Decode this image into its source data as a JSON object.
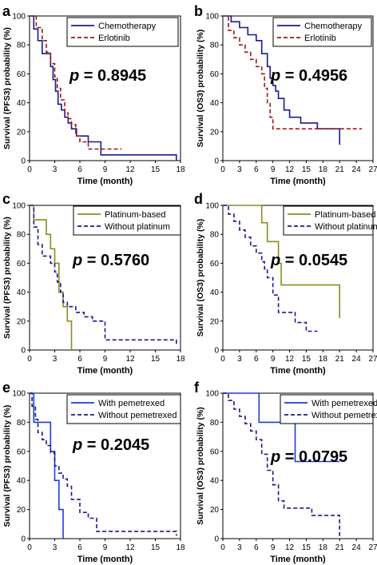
{
  "chart_data": [
    {
      "panel": "a",
      "type": "line",
      "step": true,
      "xlabel": "Time (month)",
      "ylabel": "Survival (PFS3) probability (%)",
      "xlim": [
        0,
        18
      ],
      "xticks": [
        0,
        3,
        6,
        9,
        12,
        15,
        18
      ],
      "ylim": [
        0,
        100
      ],
      "yticks": [
        0,
        20,
        40,
        60,
        80,
        100
      ],
      "annotation": "p = 0.8945",
      "legend_position": "top-right",
      "series": [
        {
          "name": "Chemotherapy",
          "color": "#1a1a8c",
          "dash": "solid",
          "x": [
            0,
            0.5,
            1,
            1.5,
            2,
            2.5,
            2.8,
            3.1,
            3.4,
            3.8,
            4.2,
            4.6,
            5,
            5.6,
            7,
            8.5,
            17.5,
            17.5
          ],
          "y": [
            100,
            91,
            83,
            74,
            74,
            65,
            56,
            48,
            39,
            35,
            30,
            26,
            22,
            17,
            13,
            4,
            4,
            0
          ]
        },
        {
          "name": "Erlotinib",
          "color": "#a01818",
          "dash": "dash",
          "x": [
            0,
            0.8,
            1.5,
            2,
            2.5,
            3,
            3.3,
            3.7,
            4.2,
            4.6,
            5,
            5.5,
            6,
            7,
            8.5,
            11
          ],
          "y": [
            100,
            92,
            83,
            75,
            67,
            58,
            50,
            42,
            33,
            29,
            25,
            17,
            13,
            8,
            8,
            8
          ]
        }
      ]
    },
    {
      "panel": "b",
      "type": "line",
      "step": true,
      "xlabel": "Time (month)",
      "ylabel": "Survival (OS3) probability (%)",
      "xlim": [
        0,
        27
      ],
      "xticks": [
        0,
        3,
        6,
        9,
        12,
        15,
        18,
        21,
        24,
        27
      ],
      "ylim": [
        0,
        100
      ],
      "yticks": [
        0,
        20,
        40,
        60,
        80,
        100
      ],
      "annotation": "p = 0.4956",
      "legend_position": "top-right",
      "series": [
        {
          "name": "Chemotherapy",
          "color": "#1a1a8c",
          "dash": "solid",
          "x": [
            0,
            1.5,
            3,
            4.5,
            6,
            7,
            8,
            8.5,
            9,
            9.5,
            10,
            11,
            12,
            14,
            17,
            21,
            21
          ],
          "y": [
            100,
            96,
            92,
            87,
            83,
            74,
            65,
            57,
            52,
            48,
            43,
            35,
            30,
            26,
            22,
            22,
            11
          ]
        },
        {
          "name": "Erlotinib",
          "color": "#a01818",
          "dash": "dash",
          "x": [
            0,
            1,
            2,
            3,
            4,
            5,
            6,
            7,
            7.5,
            8,
            8.5,
            9,
            25
          ],
          "y": [
            100,
            90,
            85,
            80,
            75,
            70,
            65,
            60,
            50,
            40,
            30,
            22,
            22
          ]
        }
      ]
    },
    {
      "panel": "c",
      "type": "line",
      "step": true,
      "xlabel": "Time (month)",
      "ylabel": "Survival (PFS3) probability (%)",
      "xlim": [
        0,
        18
      ],
      "xticks": [
        0,
        3,
        6,
        9,
        12,
        15,
        18
      ],
      "ylim": [
        0,
        100
      ],
      "yticks": [
        0,
        20,
        40,
        60,
        80,
        100
      ],
      "annotation": "p = 0.5760",
      "legend_position": "top-right",
      "series": [
        {
          "name": "Platinum-based",
          "color": "#8c8c1e",
          "dash": "solid",
          "x": [
            0,
            0.5,
            2,
            2.5,
            3,
            3.5,
            4,
            4.5,
            5,
            5
          ],
          "y": [
            100,
            90,
            80,
            70,
            60,
            40,
            30,
            20,
            10,
            0
          ]
        },
        {
          "name": "Without platinum",
          "color": "#1a1a8c",
          "dash": "dash",
          "x": [
            0,
            0.5,
            1,
            1.5,
            2.5,
            3,
            3.3,
            3.7,
            4,
            4.5,
            5.5,
            6.5,
            7.5,
            9,
            17.5,
            17.5
          ],
          "y": [
            100,
            85,
            73,
            65,
            60,
            54,
            47,
            40,
            33,
            30,
            26,
            23,
            20,
            7,
            7,
            3
          ]
        }
      ]
    },
    {
      "panel": "d",
      "type": "line",
      "step": true,
      "xlabel": "Time (month)",
      "ylabel": "Survival (OS3) probability (%)",
      "xlim": [
        0,
        27
      ],
      "xticks": [
        0,
        3,
        6,
        9,
        12,
        15,
        18,
        21,
        24,
        27
      ],
      "ylim": [
        0,
        100
      ],
      "yticks": [
        0,
        20,
        40,
        60,
        80,
        100
      ],
      "annotation": "p = 0.0545",
      "legend_position": "top-right",
      "series": [
        {
          "name": "Platinum-based",
          "color": "#8c8c1e",
          "dash": "solid",
          "x": [
            0,
            7,
            8,
            10,
            10.5,
            21,
            21
          ],
          "y": [
            100,
            88,
            75,
            60,
            45,
            45,
            22
          ]
        },
        {
          "name": "Without platinum",
          "color": "#1a1a8c",
          "dash": "dash",
          "x": [
            0,
            1,
            2,
            3,
            4,
            5,
            6,
            7,
            7.5,
            8,
            9,
            10,
            12,
            13,
            15,
            17
          ],
          "y": [
            100,
            94,
            89,
            83,
            78,
            72,
            67,
            61,
            56,
            50,
            38,
            26,
            26,
            19,
            13,
            13
          ]
        }
      ]
    },
    {
      "panel": "e",
      "type": "line",
      "step": true,
      "xlabel": "Time (month)",
      "ylabel": "Survival (PFS3) probability (%)",
      "xlim": [
        0,
        18
      ],
      "xticks": [
        0,
        3,
        6,
        9,
        12,
        15,
        18
      ],
      "ylim": [
        0,
        100
      ],
      "yticks": [
        0,
        20,
        40,
        60,
        80,
        100
      ],
      "annotation": "p = 0.2045",
      "legend_position": "top-right",
      "series": [
        {
          "name": "With pemetrexed",
          "color": "#1e3cd2",
          "dash": "solid",
          "x": [
            0,
            0.5,
            2.5,
            3,
            3.5,
            4,
            4
          ],
          "y": [
            100,
            80,
            60,
            40,
            20,
            20,
            0
          ]
        },
        {
          "name": "Without pemetrexed",
          "color": "#1a1a8c",
          "dash": "dash",
          "x": [
            0,
            0.3,
            0.7,
            1,
            1.5,
            2,
            2.5,
            3,
            3.5,
            4,
            4.5,
            5,
            6,
            7,
            8,
            17.5,
            17.5
          ],
          "y": [
            100,
            91,
            82,
            73,
            68,
            64,
            59,
            50,
            45,
            41,
            36,
            27,
            18,
            14,
            5,
            5,
            2
          ]
        }
      ]
    },
    {
      "panel": "f",
      "type": "line",
      "step": true,
      "xlabel": "Time (month)",
      "ylabel": "Survival (OS3) probability (%)",
      "xlim": [
        0,
        27
      ],
      "xticks": [
        0,
        3,
        6,
        9,
        12,
        15,
        18,
        21,
        24,
        27
      ],
      "ylim": [
        0,
        100
      ],
      "yticks": [
        0,
        20,
        40,
        60,
        80,
        100
      ],
      "annotation": "p = 0.0795",
      "legend_position": "top-right",
      "series": [
        {
          "name": "With pemetrexed",
          "color": "#1e3cd2",
          "dash": "solid",
          "x": [
            0,
            6.5,
            13,
            21
          ],
          "y": [
            100,
            80,
            53,
            53
          ]
        },
        {
          "name": "Without pemetrexed",
          "color": "#1a1a8c",
          "dash": "dash",
          "x": [
            0,
            1,
            2,
            3,
            4,
            5,
            6,
            7,
            8,
            9,
            10,
            11,
            12,
            14,
            16,
            21,
            21
          ],
          "y": [
            100,
            95,
            89,
            84,
            79,
            74,
            68,
            58,
            47,
            37,
            26,
            21,
            21,
            21,
            16,
            16,
            0
          ]
        }
      ]
    }
  ]
}
